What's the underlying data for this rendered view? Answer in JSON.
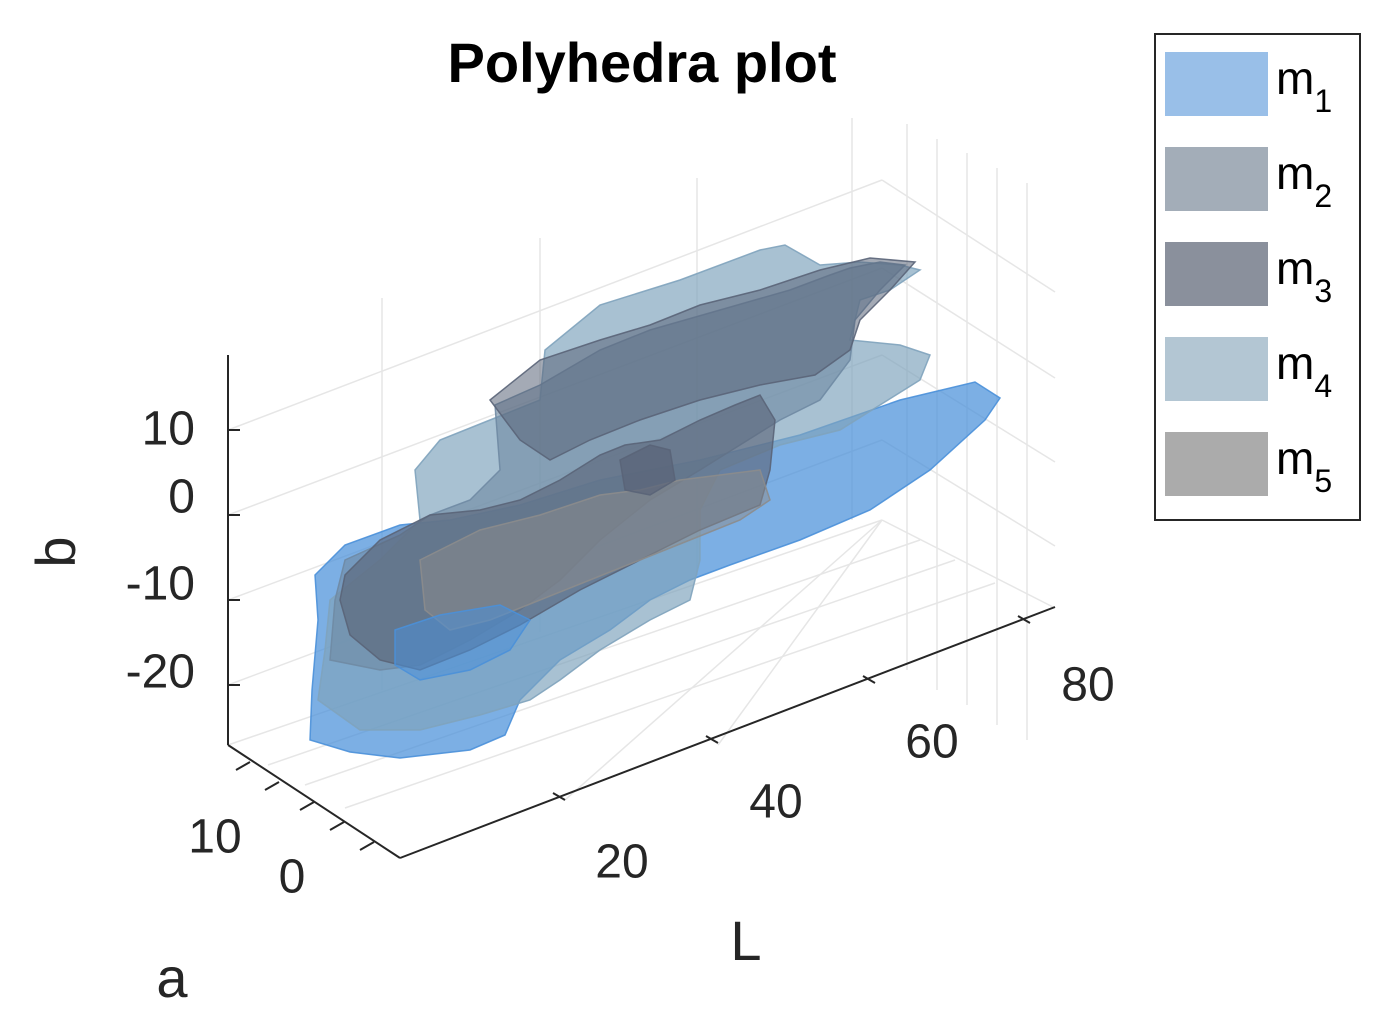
{
  "chart_data": {
    "type": "polyhedra-3d",
    "title": "Polyhedra plot",
    "xlabel": "a",
    "ylabel": "L",
    "zlabel": "b",
    "a_ticks": [
      "10",
      "0"
    ],
    "L_ticks": [
      "20",
      "40",
      "60",
      "80"
    ],
    "b_ticks": [
      "10",
      "0",
      "-10",
      "-20"
    ],
    "grid": true,
    "legend_position": "outside-top-right",
    "series": [
      {
        "name": "m",
        "sub": "1",
        "color": "#4a90d9",
        "legend_color": "#99bfe8"
      },
      {
        "name": "m",
        "sub": "2",
        "color": "#6f8aa3",
        "legend_color": "#a3adb8"
      },
      {
        "name": "m",
        "sub": "3",
        "color": "#5a6478",
        "legend_color": "#8a909c"
      },
      {
        "name": "m",
        "sub": "4",
        "color": "#7fa3bd",
        "legend_color": "#b3c6d3"
      },
      {
        "name": "m",
        "sub": "5",
        "color": "#8c8c8c",
        "legend_color": "#ababab"
      }
    ]
  }
}
